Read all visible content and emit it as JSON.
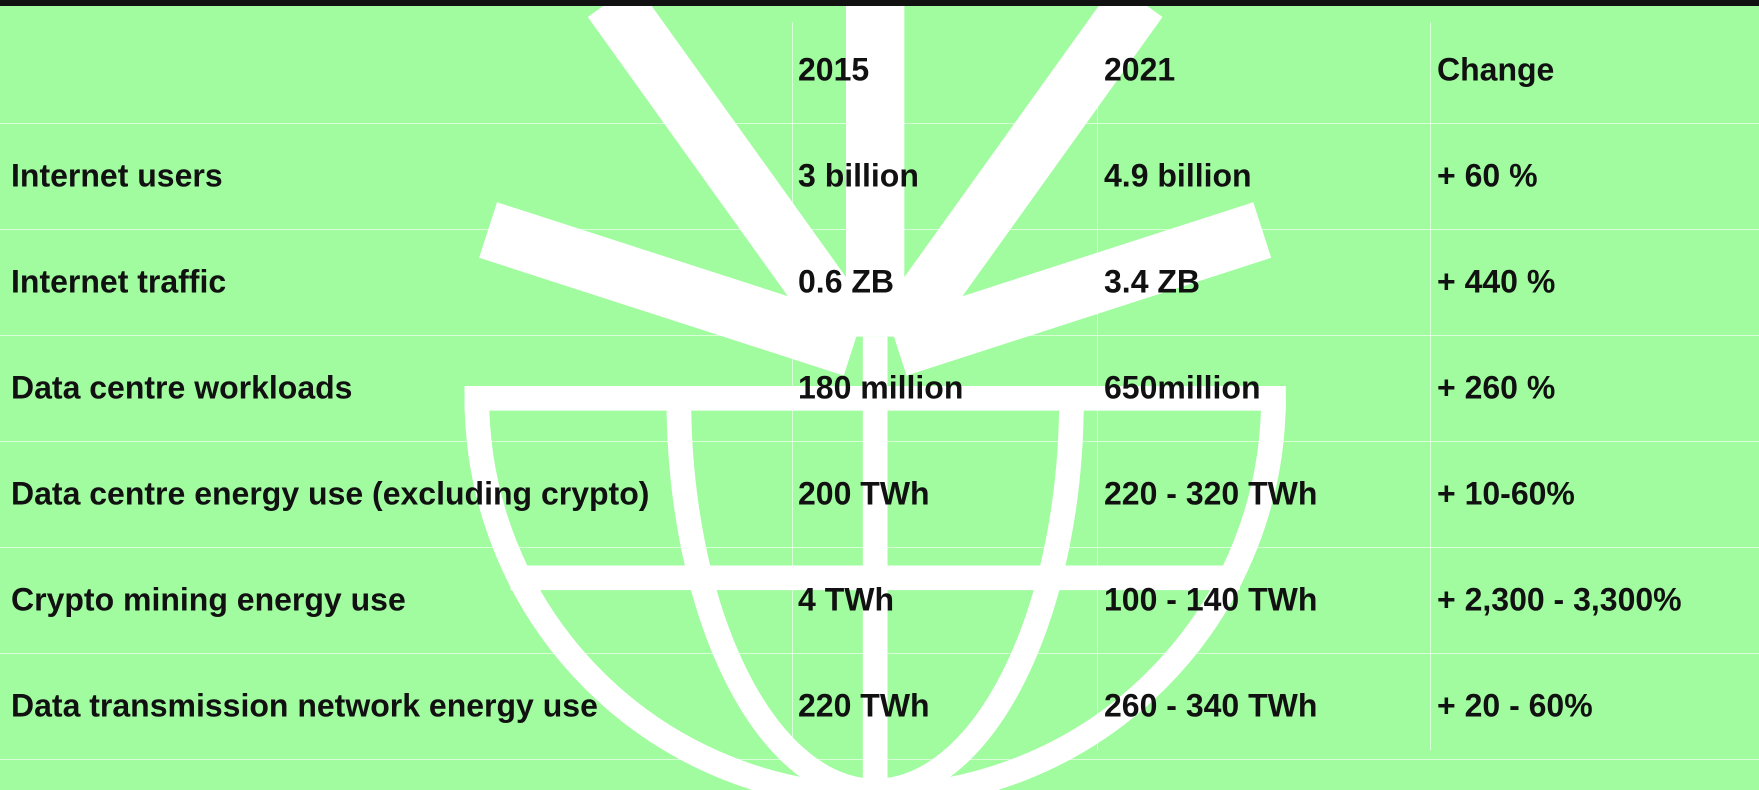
{
  "table": {
    "header": [
      "",
      "2015",
      "2021",
      "Change"
    ],
    "rows": [
      [
        "Internet users",
        "3 billion",
        "4.9 billion",
        "+ 60 %"
      ],
      [
        "Internet traffic",
        "0.6 ZB",
        "3.4 ZB",
        "+ 440 %"
      ],
      [
        "Data centre workloads",
        "180 million",
        "650million",
        "+ 260 %"
      ],
      [
        "Data centre energy use (excluding crypto)",
        "200 TWh",
        "220 - 320 TWh",
        "+ 10-60%"
      ],
      [
        "Crypto mining energy use",
        "4 TWh",
        "100 - 140 TWh",
        "+ 2,300 - 3,300%"
      ],
      [
        "Data transmission network energy use",
        "220 TWh",
        "260 - 340 TWh",
        "+ 20 - 60%"
      ]
    ]
  }
}
